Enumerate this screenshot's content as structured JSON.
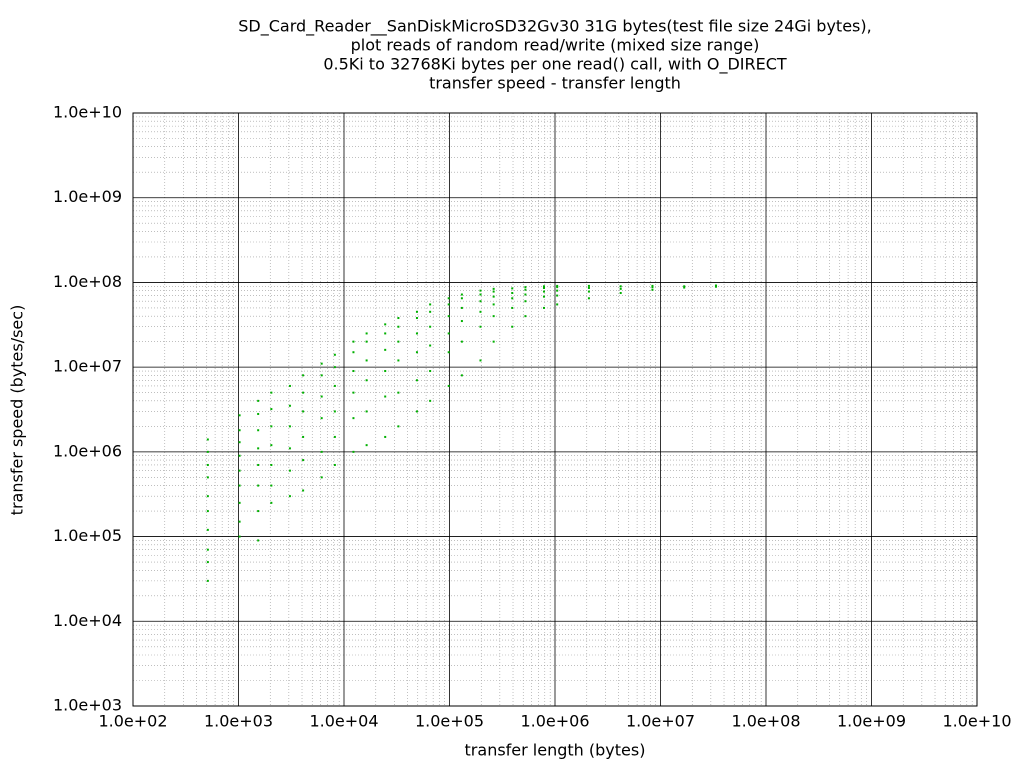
{
  "chart_data": {
    "type": "scatter",
    "title": [
      "SD_Card_Reader__SanDiskMicroSD32Gv30 31G bytes(test file size 24Gi bytes),",
      "plot reads of random read/write (mixed size range)",
      "0.5Ki to 32768Ki bytes per one read() call, with O_DIRECT",
      "transfer speed - transfer length"
    ],
    "x_label": "transfer length (bytes)",
    "y_label": "transfer speed (bytes/sec)",
    "log_x": true,
    "log_y": true,
    "grid": true,
    "color": "#00b000",
    "xlim": [
      100,
      10000000000
    ],
    "ylim": [
      1000,
      10000000000
    ],
    "xticks": [
      {
        "value": 100,
        "label": "1.0e+02"
      },
      {
        "value": 1000,
        "label": "1.0e+03"
      },
      {
        "value": 10000,
        "label": "1.0e+04"
      },
      {
        "value": 100000,
        "label": "1.0e+05"
      },
      {
        "value": 1000000,
        "label": "1.0e+06"
      },
      {
        "value": 10000000,
        "label": "1.0e+07"
      },
      {
        "value": 100000000,
        "label": "1.0e+08"
      },
      {
        "value": 1000000000,
        "label": "1.0e+09"
      },
      {
        "value": 10000000000,
        "label": "1.0e+10"
      }
    ],
    "yticks": [
      {
        "value": 1000,
        "label": "1.0e+03"
      },
      {
        "value": 10000,
        "label": "1.0e+04"
      },
      {
        "value": 100000,
        "label": "1.0e+05"
      },
      {
        "value": 1000000,
        "label": "1.0e+06"
      },
      {
        "value": 10000000,
        "label": "1.0e+07"
      },
      {
        "value": 100000000,
        "label": "1.0e+08"
      },
      {
        "value": 1000000000,
        "label": "1.0e+09"
      },
      {
        "value": 10000000000,
        "label": "1.0e+10"
      }
    ],
    "x": [
      512,
      512,
      512,
      512,
      512,
      512,
      512,
      512,
      512,
      512,
      1024,
      1024,
      1024,
      1024,
      1024,
      1024,
      1024,
      1024,
      1024,
      1536,
      1536,
      1536,
      1536,
      1536,
      1536,
      1536,
      1536,
      2048,
      2048,
      2048,
      2048,
      2048,
      2048,
      2048,
      3072,
      3072,
      3072,
      3072,
      3072,
      3072,
      4096,
      4096,
      4096,
      4096,
      4096,
      4096,
      6144,
      6144,
      6144,
      6144,
      6144,
      6144,
      8192,
      8192,
      8192,
      8192,
      8192,
      8192,
      12288,
      12288,
      12288,
      12288,
      12288,
      12288,
      16384,
      16384,
      16384,
      16384,
      16384,
      16384,
      24576,
      24576,
      24576,
      24576,
      24576,
      24576,
      32768,
      32768,
      32768,
      32768,
      32768,
      32768,
      49152,
      49152,
      49152,
      49152,
      49152,
      49152,
      65536,
      65536,
      65536,
      65536,
      65536,
      65536,
      98304,
      98304,
      98304,
      98304,
      98304,
      98304,
      131072,
      131072,
      131072,
      131072,
      131072,
      131072,
      196608,
      196608,
      196608,
      196608,
      196608,
      196608,
      262144,
      262144,
      262144,
      262144,
      262144,
      262144,
      393216,
      393216,
      393216,
      393216,
      393216,
      524288,
      524288,
      524288,
      524288,
      524288,
      786432,
      786432,
      786432,
      786432,
      786432,
      1048576,
      1048576,
      1048576,
      1048576,
      1048576,
      2097152,
      2097152,
      2097152,
      2097152,
      4194304,
      4194304,
      4194304,
      8388608,
      8388608,
      8388608,
      16777216,
      16777216,
      33554432,
      33554432
    ],
    "values": [
      30000,
      50000,
      70000,
      120000,
      200000,
      300000,
      500000,
      700000,
      1000000,
      1400000,
      100000,
      150000,
      250000,
      400000,
      600000,
      900000,
      1300000,
      1800000,
      2700000,
      90000,
      200000,
      400000,
      700000,
      1100000,
      1800000,
      2800000,
      4000000,
      250000,
      400000,
      700000,
      1200000,
      2000000,
      3200000,
      5000000,
      300000,
      600000,
      1100000,
      2000000,
      3500000,
      6000000,
      350000,
      800000,
      1500000,
      3000000,
      5000000,
      8000000,
      500000,
      1000000,
      2500000,
      4500000,
      8000000,
      11000000,
      700000,
      1500000,
      3000000,
      6000000,
      10000000,
      14000000,
      1000000,
      2500000,
      5000000,
      9000000,
      15000000,
      20000000,
      1200000,
      3000000,
      7000000,
      12000000,
      20000000,
      25000000,
      1500000,
      4500000,
      9000000,
      16000000,
      25000000,
      32000000,
      2000000,
      5000000,
      12000000,
      20000000,
      30000000,
      38000000,
      3000000,
      7000000,
      15000000,
      25000000,
      38000000,
      45000000,
      4000000,
      9000000,
      18000000,
      30000000,
      45000000,
      55000000,
      6000000,
      15000000,
      25000000,
      40000000,
      55000000,
      65000000,
      8000000,
      20000000,
      35000000,
      50000000,
      65000000,
      72000000,
      12000000,
      30000000,
      45000000,
      60000000,
      72000000,
      80000000,
      20000000,
      40000000,
      55000000,
      68000000,
      78000000,
      84000000,
      30000000,
      50000000,
      65000000,
      75000000,
      85000000,
      40000000,
      60000000,
      72000000,
      82000000,
      88000000,
      50000000,
      68000000,
      78000000,
      86000000,
      90000000,
      55000000,
      70000000,
      80000000,
      88000000,
      91000000,
      65000000,
      78000000,
      86000000,
      91000000,
      75000000,
      84000000,
      90000000,
      82000000,
      88000000,
      91000000,
      87000000,
      90000000,
      89000000,
      92000000
    ]
  }
}
